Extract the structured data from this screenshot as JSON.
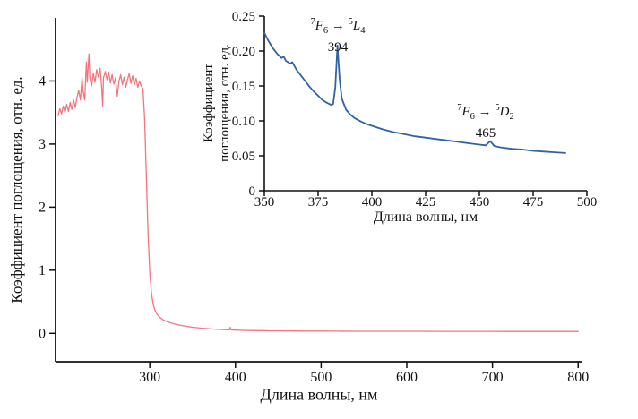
{
  "figure": {
    "background": "#ffffff",
    "axis_color": "#111111"
  },
  "chart_data": [
    {
      "id": "main",
      "type": "line",
      "title": "",
      "xlabel": "Длина волны, нм",
      "ylabel": "Коэффициент поглощения, отн. ед.",
      "xlim": [
        190,
        805
      ],
      "ylim": [
        -0.45,
        5.0
      ],
      "xtick_values": [
        300,
        400,
        500,
        600,
        700,
        800
      ],
      "xtick_labels": [
        "300",
        "400",
        "500",
        "600",
        "700",
        "800"
      ],
      "ytick_values": [
        0,
        1,
        2,
        3,
        4
      ],
      "ytick_labels": [
        "0",
        "1",
        "2",
        "3",
        "4"
      ],
      "grid": false,
      "legend": "none",
      "color": "#f4747f",
      "series": [
        {
          "name": "absorption-spectrum",
          "points": [
            [
              193,
              3.45
            ],
            [
              195,
              3.56
            ],
            [
              197,
              3.48
            ],
            [
              199,
              3.6
            ],
            [
              201,
              3.5
            ],
            [
              203,
              3.63
            ],
            [
              205,
              3.52
            ],
            [
              207,
              3.66
            ],
            [
              209,
              3.55
            ],
            [
              211,
              3.7
            ],
            [
              213,
              3.58
            ],
            [
              215,
              3.74
            ],
            [
              217,
              3.85
            ],
            [
              219,
              3.7
            ],
            [
              221,
              4.05
            ],
            [
              222,
              3.85
            ],
            [
              224,
              3.7
            ],
            [
              226,
              4.3
            ],
            [
              227,
              3.98
            ],
            [
              229,
              4.43
            ],
            [
              230,
              4.05
            ],
            [
              232,
              3.92
            ],
            [
              234,
              4.12
            ],
            [
              236,
              3.98
            ],
            [
              238,
              4.18
            ],
            [
              240,
              4.06
            ],
            [
              242,
              4.2
            ],
            [
              244,
              3.88
            ],
            [
              245,
              3.6
            ],
            [
              246,
              4.05
            ],
            [
              248,
              4.15
            ],
            [
              250,
              4.02
            ],
            [
              252,
              4.14
            ],
            [
              254,
              3.97
            ],
            [
              256,
              4.1
            ],
            [
              258,
              3.95
            ],
            [
              260,
              4.05
            ],
            [
              262,
              3.76
            ],
            [
              264,
              4.0
            ],
            [
              266,
              4.1
            ],
            [
              268,
              3.94
            ],
            [
              270,
              4.06
            ],
            [
              272,
              3.9
            ],
            [
              274,
              4.02
            ],
            [
              276,
              4.12
            ],
            [
              278,
              3.96
            ],
            [
              280,
              4.08
            ],
            [
              282,
              3.94
            ],
            [
              284,
              4.04
            ],
            [
              286,
              3.9
            ],
            [
              288,
              4.0
            ],
            [
              290,
              3.92
            ],
            [
              292,
              3.88
            ],
            [
              294,
              3.4
            ],
            [
              296,
              2.5
            ],
            [
              298,
              1.55
            ],
            [
              300,
              0.95
            ],
            [
              302,
              0.63
            ],
            [
              304,
              0.46
            ],
            [
              306,
              0.37
            ],
            [
              308,
              0.31
            ],
            [
              312,
              0.25
            ],
            [
              316,
              0.21
            ],
            [
              320,
              0.185
            ],
            [
              325,
              0.163
            ],
            [
              330,
              0.145
            ],
            [
              335,
              0.13
            ],
            [
              340,
              0.118
            ],
            [
              345,
              0.107
            ],
            [
              350,
              0.097
            ],
            [
              355,
              0.089
            ],
            [
              360,
              0.082
            ],
            [
              365,
              0.076
            ],
            [
              370,
              0.071
            ],
            [
              375,
              0.066
            ],
            [
              380,
              0.062
            ],
            [
              385,
              0.059
            ],
            [
              390,
              0.056
            ],
            [
              393,
              0.055
            ],
            [
              394,
              0.095
            ],
            [
              395,
              0.054
            ],
            [
              400,
              0.051
            ],
            [
              410,
              0.047
            ],
            [
              420,
              0.044
            ],
            [
              430,
              0.042
            ],
            [
              440,
              0.04
            ],
            [
              450,
              0.039
            ],
            [
              460,
              0.038
            ],
            [
              470,
              0.037
            ],
            [
              480,
              0.036
            ],
            [
              490,
              0.035
            ],
            [
              500,
              0.035
            ],
            [
              520,
              0.034
            ],
            [
              540,
              0.033
            ],
            [
              560,
              0.033
            ],
            [
              580,
              0.032
            ],
            [
              600,
              0.032
            ],
            [
              620,
              0.032
            ],
            [
              640,
              0.031
            ],
            [
              660,
              0.031
            ],
            [
              680,
              0.031
            ],
            [
              700,
              0.031
            ],
            [
              720,
              0.03
            ],
            [
              740,
              0.03
            ],
            [
              760,
              0.03
            ],
            [
              780,
              0.03
            ],
            [
              800,
              0.03
            ]
          ]
        }
      ]
    },
    {
      "id": "inset",
      "type": "line",
      "title": "",
      "xlabel": "Длина волны, нм",
      "ylabel": "Коэффициент поглощения, отн. ед.",
      "ylabel_lines": [
        "Коэффициент",
        "поглощения, отн. ед."
      ],
      "xlim": [
        350,
        500
      ],
      "ylim": [
        0,
        0.25
      ],
      "xtick_values": [
        350,
        375,
        400,
        425,
        450,
        475,
        500
      ],
      "xtick_labels": [
        "350",
        "375",
        "400",
        "425",
        "450",
        "475",
        "500"
      ],
      "ytick_values": [
        0,
        0.05,
        0.1,
        0.15,
        0.2,
        0.25
      ],
      "ytick_labels": [
        "0",
        "0.05",
        "0.10",
        "0.15",
        "0.20",
        "0.25"
      ],
      "grid": false,
      "legend": "none",
      "color": "#2f62a6",
      "series": [
        {
          "name": "absorption-spectrum-zoom",
          "points": [
            [
              350,
              0.226
            ],
            [
              352,
              0.214
            ],
            [
              354,
              0.204
            ],
            [
              356,
              0.196
            ],
            [
              358,
              0.19
            ],
            [
              359,
              0.192
            ],
            [
              360,
              0.186
            ],
            [
              362,
              0.182
            ],
            [
              363,
              0.184
            ],
            [
              365,
              0.173
            ],
            [
              367,
              0.165
            ],
            [
              369,
              0.157
            ],
            [
              371,
              0.149
            ],
            [
              373,
              0.142
            ],
            [
              375,
              0.136
            ],
            [
              377,
              0.13
            ],
            [
              379,
              0.126
            ],
            [
              381,
              0.123
            ],
            [
              382,
              0.124
            ],
            [
              383,
              0.148
            ],
            [
              384,
              0.208
            ],
            [
              385,
              0.16
            ],
            [
              386,
              0.132
            ],
            [
              388,
              0.116
            ],
            [
              390,
              0.109
            ],
            [
              392,
              0.104
            ],
            [
              395,
              0.099
            ],
            [
              398,
              0.095
            ],
            [
              400,
              0.093
            ],
            [
              405,
              0.088
            ],
            [
              410,
              0.084
            ],
            [
              415,
              0.081
            ],
            [
              420,
              0.078
            ],
            [
              425,
              0.076
            ],
            [
              430,
              0.074
            ],
            [
              435,
              0.072
            ],
            [
              440,
              0.07
            ],
            [
              445,
              0.068
            ],
            [
              450,
              0.066
            ],
            [
              453,
              0.065
            ],
            [
              455,
              0.071
            ],
            [
              457,
              0.064
            ],
            [
              460,
              0.062
            ],
            [
              465,
              0.06
            ],
            [
              470,
              0.059
            ],
            [
              475,
              0.057
            ],
            [
              480,
              0.056
            ],
            [
              485,
              0.055
            ],
            [
              490,
              0.054
            ]
          ]
        }
      ],
      "annotations": [
        {
          "name": "transition-7F6-5L4",
          "segments": [
            {
              "t": "7",
              "s": "sup"
            },
            {
              "t": "F",
              "s": "it"
            },
            {
              "t": "6",
              "s": "sub"
            },
            {
              "t": " → ",
              "s": ""
            },
            {
              "t": "5",
              "s": "sup"
            },
            {
              "t": "L",
              "s": "it"
            },
            {
              "t": "4",
              "s": "sub"
            }
          ],
          "value_label": "394"
        },
        {
          "name": "transition-7F6-5D2",
          "segments": [
            {
              "t": "7",
              "s": "sup"
            },
            {
              "t": "F",
              "s": "it"
            },
            {
              "t": "6",
              "s": "sub"
            },
            {
              "t": " → ",
              "s": ""
            },
            {
              "t": "5",
              "s": "sup"
            },
            {
              "t": "D",
              "s": "it"
            },
            {
              "t": "2",
              "s": "sub"
            }
          ],
          "value_label": "465"
        }
      ]
    }
  ]
}
